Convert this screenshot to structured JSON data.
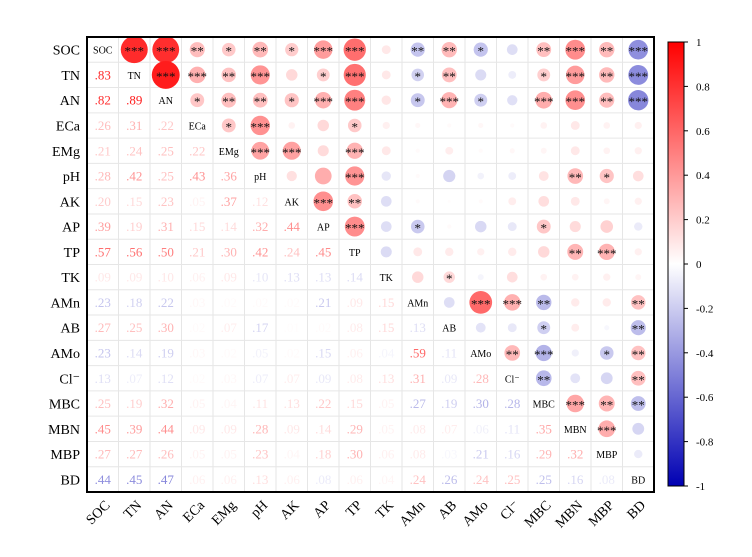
{
  "chart_data": {
    "type": "heatmap",
    "variables": [
      "SOC",
      "TN",
      "AN",
      "ECa",
      "EMg",
      "pH",
      "AK",
      "AP",
      "TP",
      "TK",
      "AMn",
      "AB",
      "AMo",
      "Cl⁻",
      "MBC",
      "MBN",
      "MBP",
      "BD"
    ],
    "matrix": [
      [
        1,
        0.83,
        0.82,
        0.26,
        0.21,
        0.28,
        0.2,
        0.39,
        0.57,
        0.09,
        -0.23,
        0.27,
        -0.23,
        -0.13,
        0.25,
        0.45,
        0.27,
        -0.44
      ],
      [
        0.83,
        1,
        0.89,
        0.31,
        0.24,
        0.42,
        0.15,
        0.19,
        0.56,
        0.09,
        -0.18,
        0.25,
        -0.14,
        -0.07,
        0.19,
        0.39,
        0.27,
        -0.45
      ],
      [
        0.82,
        0.89,
        1,
        0.22,
        0.25,
        0.25,
        0.23,
        0.31,
        0.5,
        0.1,
        -0.22,
        0.3,
        -0.19,
        -0.12,
        0.32,
        0.44,
        0.26,
        -0.47
      ],
      [
        0.26,
        0.31,
        0.22,
        1,
        0.22,
        0.43,
        0.05,
        0.15,
        0.21,
        0.06,
        0.03,
        0.02,
        0.03,
        0.02,
        0.05,
        0.09,
        0.05,
        0.06
      ],
      [
        0.21,
        0.24,
        0.25,
        0.22,
        1,
        0.36,
        0.37,
        0.14,
        0.3,
        0.09,
        0.02,
        0.07,
        0.02,
        0.03,
        0.04,
        0.09,
        0.05,
        0.06
      ],
      [
        0.28,
        0.42,
        0.25,
        0.43,
        0.36,
        1,
        0.12,
        0.32,
        0.42,
        -0.1,
        0.02,
        -0.17,
        -0.05,
        -0.07,
        0.11,
        0.28,
        0.23,
        0.13
      ],
      [
        0.2,
        0.15,
        0.23,
        0.05,
        0.37,
        0.12,
        1,
        0.44,
        0.24,
        -0.13,
        0.02,
        0.01,
        0.02,
        0.07,
        0.13,
        0.09,
        0.04,
        0.06
      ],
      [
        0.39,
        0.19,
        0.31,
        0.15,
        0.14,
        0.32,
        0.44,
        1,
        0.45,
        -0.13,
        -0.21,
        0.02,
        -0.15,
        -0.09,
        0.22,
        0.14,
        0.18,
        -0.08
      ],
      [
        0.57,
        0.56,
        0.5,
        0.21,
        0.3,
        0.42,
        0.24,
        0.45,
        1,
        -0.14,
        0.09,
        0.08,
        0.06,
        0.08,
        0.15,
        0.29,
        0.3,
        0.06
      ],
      [
        0.09,
        0.09,
        0.1,
        0.06,
        0.09,
        -0.1,
        -0.13,
        -0.13,
        -0.14,
        1,
        0.15,
        0.15,
        -0.04,
        0.13,
        0.05,
        0.05,
        0.06,
        0.04
      ],
      [
        -0.23,
        -0.18,
        -0.22,
        0.03,
        0.02,
        0.02,
        0.02,
        -0.21,
        0.09,
        0.15,
        1,
        -0.13,
        0.59,
        0.31,
        -0.27,
        0.08,
        0.08,
        0.24
      ],
      [
        0.27,
        0.25,
        0.3,
        0.02,
        0.07,
        -0.17,
        0.01,
        0.02,
        0.08,
        0.15,
        -0.13,
        1,
        -0.11,
        -0.09,
        -0.19,
        0.07,
        -0.03,
        -0.26
      ],
      [
        -0.23,
        -0.14,
        -0.19,
        0.03,
        0.02,
        -0.05,
        0.02,
        -0.15,
        0.06,
        -0.04,
        0.59,
        -0.11,
        1,
        0.28,
        -0.3,
        -0.06,
        -0.21,
        0.24
      ],
      [
        -0.13,
        -0.07,
        -0.12,
        0.02,
        0.03,
        -0.07,
        0.07,
        -0.09,
        0.08,
        0.13,
        0.31,
        -0.09,
        0.28,
        1,
        -0.28,
        -0.11,
        -0.16,
        0.25
      ],
      [
        0.25,
        0.19,
        0.32,
        0.05,
        0.04,
        0.11,
        0.13,
        0.22,
        0.15,
        0.05,
        -0.27,
        -0.19,
        -0.3,
        -0.28,
        1,
        0.35,
        0.29,
        -0.25
      ],
      [
        0.45,
        0.39,
        0.44,
        0.09,
        0.09,
        0.28,
        0.09,
        0.14,
        0.29,
        0.05,
        0.08,
        0.07,
        -0.06,
        -0.11,
        0.35,
        1,
        0.32,
        -0.16
      ],
      [
        0.27,
        0.27,
        0.26,
        0.05,
        0.05,
        0.23,
        0.04,
        0.18,
        0.3,
        0.06,
        0.08,
        -0.03,
        -0.21,
        -0.16,
        0.29,
        0.32,
        1,
        -0.08
      ],
      [
        -0.44,
        -0.45,
        -0.47,
        0.06,
        0.06,
        0.13,
        0.06,
        -0.08,
        0.06,
        0.04,
        0.24,
        -0.26,
        0.24,
        0.25,
        -0.25,
        -0.16,
        -0.08,
        1
      ]
    ],
    "upper_significance": [
      [
        "",
        "***",
        "***",
        "**",
        "*",
        "**",
        "*",
        "***",
        "***",
        "",
        "**",
        "**",
        "*",
        "",
        "**",
        "***",
        "**",
        "***"
      ],
      [
        "",
        "",
        "***",
        "***",
        "**",
        "***",
        "",
        "*",
        "***",
        "",
        "*",
        "**",
        "",
        "",
        "*",
        "***",
        "**",
        "***"
      ],
      [
        "",
        "",
        "",
        "*",
        "**",
        "**",
        "*",
        "***",
        "***",
        "",
        "*",
        "***",
        "*",
        "",
        "***",
        "***",
        "**",
        "***"
      ],
      [
        "",
        "",
        "",
        "",
        "*",
        "***",
        "",
        "",
        "*",
        "",
        "",
        "",
        "",
        "",
        "",
        "",
        "",
        ""
      ],
      [
        "",
        "",
        "",
        "",
        "",
        "***",
        "***",
        "",
        "***",
        "",
        "",
        "",
        "",
        "",
        "",
        "",
        "",
        ""
      ],
      [
        "",
        "",
        "",
        "",
        "",
        "",
        "",
        "",
        "***",
        "",
        "",
        "",
        "",
        "",
        "",
        "**",
        "*",
        ""
      ],
      [
        "",
        "",
        "",
        "",
        "",
        "",
        "",
        "***",
        "**",
        "",
        "",
        "",
        "",
        "",
        "",
        "",
        "",
        ""
      ],
      [
        "",
        "",
        "",
        "",
        "",
        "",
        "",
        "",
        "***",
        "",
        "*",
        "",
        "",
        "",
        "*",
        "",
        "",
        ""
      ],
      [
        "",
        "",
        "",
        "",
        "",
        "",
        "",
        "",
        "",
        "",
        "",
        "",
        "",
        "",
        "",
        "**",
        "***",
        ""
      ],
      [
        "",
        "",
        "",
        "",
        "",
        "",
        "",
        "",
        "",
        "",
        "",
        "*",
        "",
        "",
        "",
        "",
        "",
        ""
      ],
      [
        "",
        "",
        "",
        "",
        "",
        "",
        "",
        "",
        "",
        "",
        "",
        "",
        "***",
        "***",
        "**",
        "",
        "",
        "**"
      ],
      [
        "",
        "",
        "",
        "",
        "",
        "",
        "",
        "",
        "",
        "",
        "",
        "",
        "",
        "",
        "*",
        "",
        "",
        "**"
      ],
      [
        "",
        "",
        "",
        "",
        "",
        "",
        "",
        "",
        "",
        "",
        "",
        "",
        "",
        "**",
        "***",
        "",
        "*",
        "**"
      ],
      [
        "",
        "",
        "",
        "",
        "",
        "",
        "",
        "",
        "",
        "",
        "",
        "",
        "",
        "",
        "**",
        "",
        "",
        "**"
      ],
      [
        "",
        "",
        "",
        "",
        "",
        "",
        "",
        "",
        "",
        "",
        "",
        "",
        "",
        "",
        "",
        "***",
        "**",
        "**"
      ],
      [
        "",
        "",
        "",
        "",
        "",
        "",
        "",
        "",
        "",
        "",
        "",
        "",
        "",
        "",
        "",
        "",
        "***",
        ""
      ],
      [
        "",
        "",
        "",
        "",
        "",
        "",
        "",
        "",
        "",
        "",
        "",
        "",
        "",
        "",
        "",
        "",
        "",
        ""
      ],
      [
        "",
        "",
        "",
        "",
        "",
        "",
        "",
        "",
        "",
        "",
        "",
        "",
        "",
        "",
        "",
        "",
        "",
        ""
      ]
    ],
    "colorbar": {
      "range": [
        -1,
        1
      ],
      "ticks": [
        "1",
        "0.8",
        "0.6",
        "0.4",
        "0.2",
        "0",
        "-0.2",
        "-0.4",
        "-0.6",
        "-0.8",
        "-1"
      ],
      "positive_color": "#ff0000",
      "zero_color": "#ffffff",
      "negative_color": "#0000b3"
    },
    "grid": true,
    "lower_triangle": "numbers",
    "upper_triangle": "circles",
    "legend_position": "right"
  }
}
